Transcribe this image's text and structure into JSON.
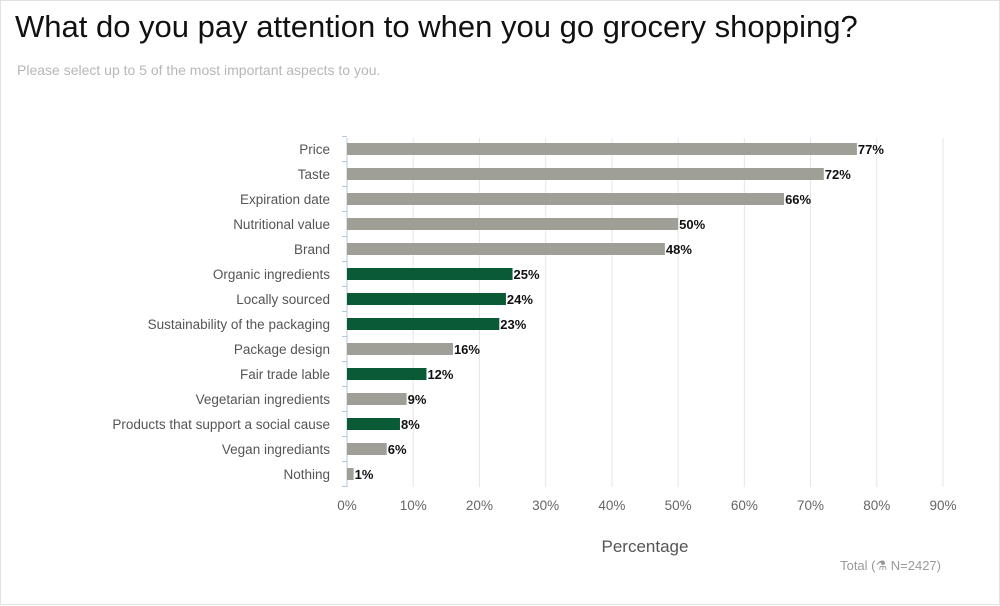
{
  "title": "What do you pay attention to when you go grocery shopping?",
  "subtitle": "Please select up to 5 of the most important aspects to you.",
  "total_label": "Total (⚗ N=2427)",
  "colors": {
    "default": "#a09f97",
    "highlight": "#0b5a36",
    "grid": "#e6e6e6",
    "axis": "#b6c7e0"
  },
  "chart_data": {
    "type": "bar",
    "orientation": "horizontal",
    "categories": [
      "Price",
      "Taste",
      "Expiration date",
      "Nutritional value",
      "Brand",
      "Organic ingredients",
      "Locally sourced",
      "Sustainability of the packaging",
      "Package design",
      "Fair trade lable",
      "Vegetarian ingredients",
      "Products that support a social cause",
      "Vegan ingrediants",
      "Nothing"
    ],
    "values": [
      77,
      72,
      66,
      50,
      48,
      25,
      24,
      23,
      16,
      12,
      9,
      8,
      6,
      1
    ],
    "value_labels": [
      "77%",
      "72%",
      "66%",
      "50%",
      "48%",
      "25%",
      "24%",
      "23%",
      "16%",
      "12%",
      "9%",
      "8%",
      "6%",
      "1%"
    ],
    "highlighted": [
      false,
      false,
      false,
      false,
      false,
      true,
      true,
      true,
      false,
      true,
      false,
      true,
      false,
      false
    ],
    "xlabel": "Percentage",
    "xticks": [
      0,
      10,
      20,
      30,
      40,
      50,
      60,
      70,
      80,
      90
    ],
    "xtick_labels": [
      "0%",
      "10%",
      "20%",
      "30%",
      "40%",
      "50%",
      "60%",
      "70%",
      "80%",
      "90%"
    ],
    "xlim": [
      0,
      90
    ],
    "grid": true
  }
}
